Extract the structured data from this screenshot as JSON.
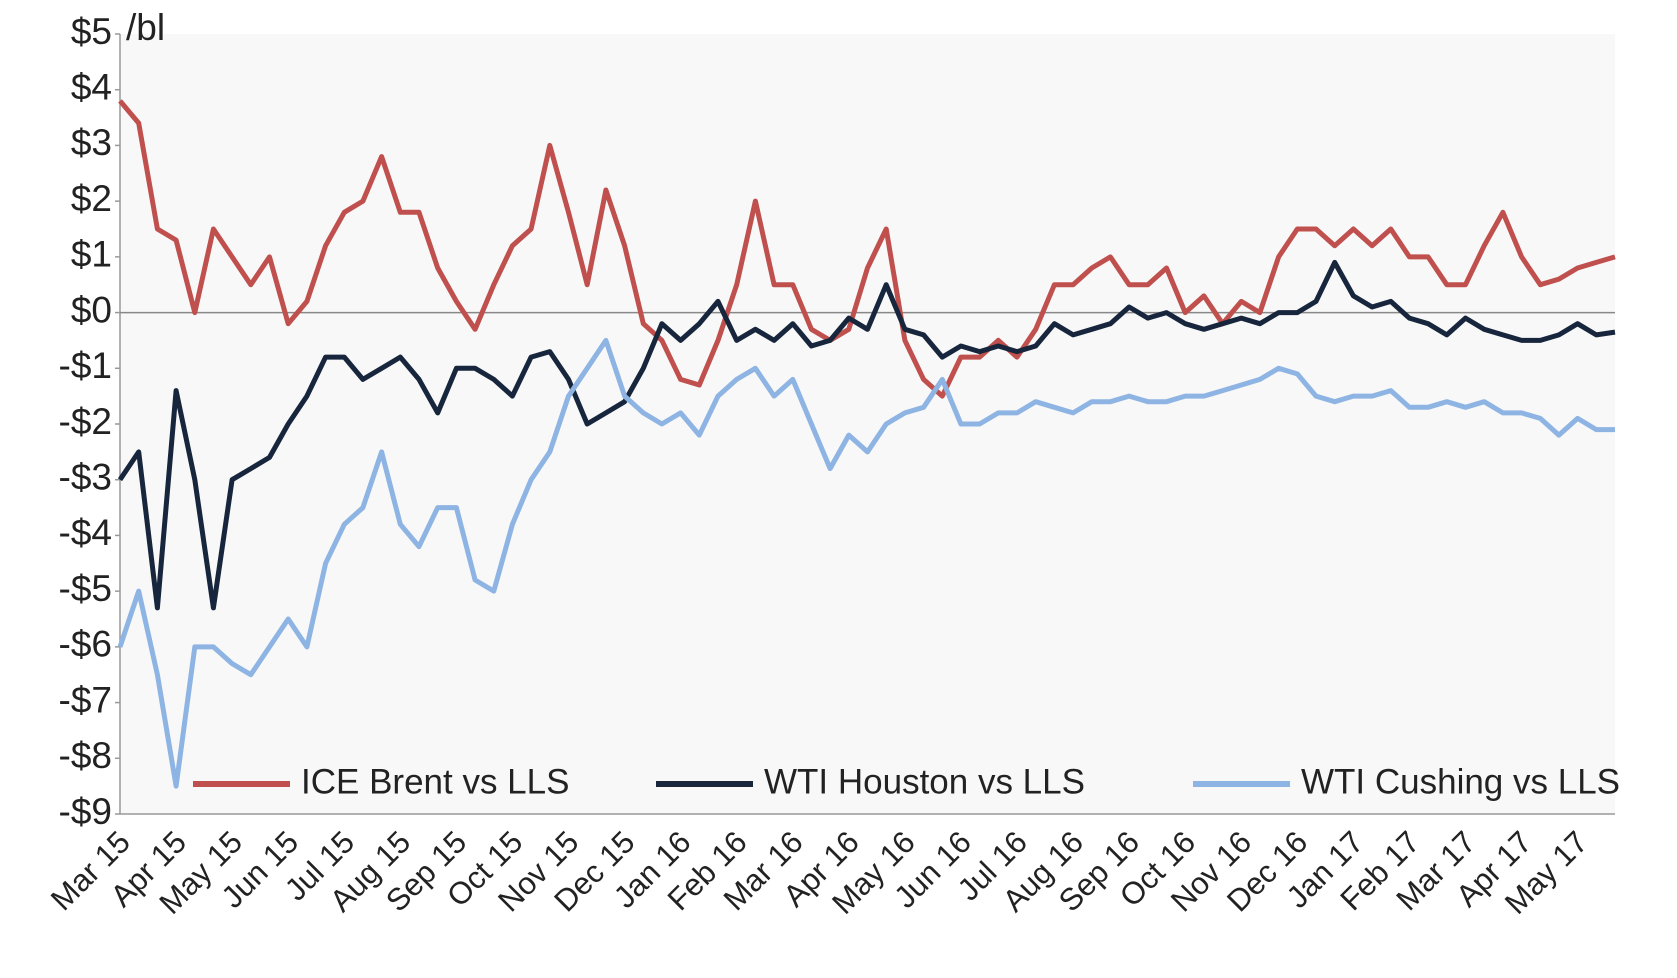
{
  "chart_data": {
    "type": "line",
    "unit": "/bl",
    "categories": [
      "Mar 15",
      null,
      null,
      "Apr 15",
      null,
      null,
      "May 15",
      null,
      null,
      "Jun 15",
      null,
      null,
      "Jul 15",
      null,
      null,
      "Aug 15",
      null,
      null,
      "Sep 15",
      null,
      null,
      "Oct 15",
      null,
      null,
      "Nov 15",
      null,
      null,
      "Dec 15",
      null,
      null,
      "Jan 16",
      null,
      null,
      "Feb 16",
      null,
      null,
      "Mar 16",
      null,
      null,
      "Apr 16",
      null,
      null,
      "May 16",
      null,
      null,
      "Jun 16",
      null,
      null,
      "Jul 16",
      null,
      null,
      "Aug 16",
      null,
      null,
      "Sep 16",
      null,
      null,
      "Oct 16",
      null,
      null,
      "Nov 16",
      null,
      null,
      "Dec 16",
      null,
      null,
      "Jan 17",
      null,
      null,
      "Feb 17",
      null,
      null,
      "Mar 17",
      null,
      null,
      "Apr 17",
      null,
      null,
      "May 17",
      null,
      null
    ],
    "series": [
      {
        "name": "ICE Brent vs LLS",
        "color": "#c0504d",
        "values": [
          3.8,
          3.4,
          1.5,
          1.3,
          0.0,
          1.5,
          1.0,
          0.5,
          1.0,
          -0.2,
          0.2,
          1.2,
          1.8,
          2.0,
          2.8,
          1.8,
          1.8,
          0.8,
          0.2,
          -0.3,
          0.5,
          1.2,
          1.5,
          3.0,
          1.8,
          0.5,
          2.2,
          1.2,
          -0.2,
          -0.5,
          -1.2,
          -1.3,
          -0.5,
          0.5,
          2.0,
          0.5,
          0.5,
          -0.3,
          -0.5,
          -0.3,
          0.8,
          1.5,
          -0.5,
          -1.2,
          -1.5,
          -0.8,
          -0.8,
          -0.5,
          -0.8,
          -0.3,
          0.5,
          0.5,
          0.8,
          1.0,
          0.5,
          0.5,
          0.8,
          0.0,
          0.3,
          -0.2,
          0.2,
          0.0,
          1.0,
          1.5,
          1.5,
          1.2,
          1.5,
          1.2,
          1.5,
          1.0,
          1.0,
          0.5,
          0.5,
          1.2,
          1.8,
          1.0,
          0.5,
          0.6,
          0.8,
          0.9,
          1.0
        ]
      },
      {
        "name": "WTI Houston vs LLS",
        "color": "#17263c",
        "values": [
          -3.0,
          -2.5,
          -5.3,
          -1.4,
          -3.0,
          -5.3,
          -3.0,
          -2.8,
          -2.6,
          -2.0,
          -1.5,
          -0.8,
          -0.8,
          -1.2,
          -1.0,
          -0.8,
          -1.2,
          -1.8,
          -1.0,
          -1.0,
          -1.2,
          -1.5,
          -0.8,
          -0.7,
          -1.2,
          -2.0,
          -1.8,
          -1.6,
          -1.0,
          -0.2,
          -0.5,
          -0.2,
          0.2,
          -0.5,
          -0.3,
          -0.5,
          -0.2,
          -0.6,
          -0.5,
          -0.1,
          -0.3,
          0.5,
          -0.3,
          -0.4,
          -0.8,
          -0.6,
          -0.7,
          -0.6,
          -0.7,
          -0.6,
          -0.2,
          -0.4,
          -0.3,
          -0.2,
          0.1,
          -0.1,
          0.0,
          -0.2,
          -0.3,
          -0.2,
          -0.1,
          -0.2,
          0.0,
          0.0,
          0.2,
          0.9,
          0.3,
          0.1,
          0.2,
          -0.1,
          -0.2,
          -0.4,
          -0.1,
          -0.3,
          -0.4,
          -0.5,
          -0.5,
          -0.4,
          -0.2,
          -0.4,
          -0.35
        ]
      },
      {
        "name": "WTI Cushing vs LLS",
        "color": "#8eb4e3",
        "values": [
          -6.0,
          -5.0,
          -6.5,
          -8.5,
          -6.0,
          -6.0,
          -6.3,
          -6.5,
          -6.0,
          -5.5,
          -6.0,
          -4.5,
          -3.8,
          -3.5,
          -2.5,
          -3.8,
          -4.2,
          -3.5,
          -3.5,
          -4.8,
          -5.0,
          -3.8,
          -3.0,
          -2.5,
          -1.5,
          -1.0,
          -0.5,
          -1.5,
          -1.8,
          -2.0,
          -1.8,
          -2.2,
          -1.5,
          -1.2,
          -1.0,
          -1.5,
          -1.2,
          -2.0,
          -2.8,
          -2.2,
          -2.5,
          -2.0,
          -1.8,
          -1.7,
          -1.2,
          -2.0,
          -2.0,
          -1.8,
          -1.8,
          -1.6,
          -1.7,
          -1.8,
          -1.6,
          -1.6,
          -1.5,
          -1.6,
          -1.6,
          -1.5,
          -1.5,
          -1.4,
          -1.3,
          -1.2,
          -1.0,
          -1.1,
          -1.5,
          -1.6,
          -1.5,
          -1.5,
          -1.4,
          -1.7,
          -1.7,
          -1.6,
          -1.7,
          -1.6,
          -1.8,
          -1.8,
          -1.9,
          -2.2,
          -1.9,
          -2.1,
          -2.1
        ]
      }
    ],
    "ylim": [
      -9,
      5
    ],
    "yticks": [
      {
        "value": -9,
        "label": "-$9"
      },
      {
        "value": -8,
        "label": "-$8"
      },
      {
        "value": -7,
        "label": "-$7"
      },
      {
        "value": -6,
        "label": "-$6"
      },
      {
        "value": -5,
        "label": "-$5"
      },
      {
        "value": -4,
        "label": "-$4"
      },
      {
        "value": -3,
        "label": "-$3"
      },
      {
        "value": -2,
        "label": "-$2"
      },
      {
        "value": -1,
        "label": "-$1"
      },
      {
        "value": 0,
        "label": "$0"
      },
      {
        "value": 1,
        "label": "$1"
      },
      {
        "value": 2,
        "label": "$2"
      },
      {
        "value": 3,
        "label": "$3"
      },
      {
        "value": 4,
        "label": "$4"
      },
      {
        "value": 5,
        "label": "$5"
      }
    ],
    "legend": "bottom",
    "grid": false
  }
}
